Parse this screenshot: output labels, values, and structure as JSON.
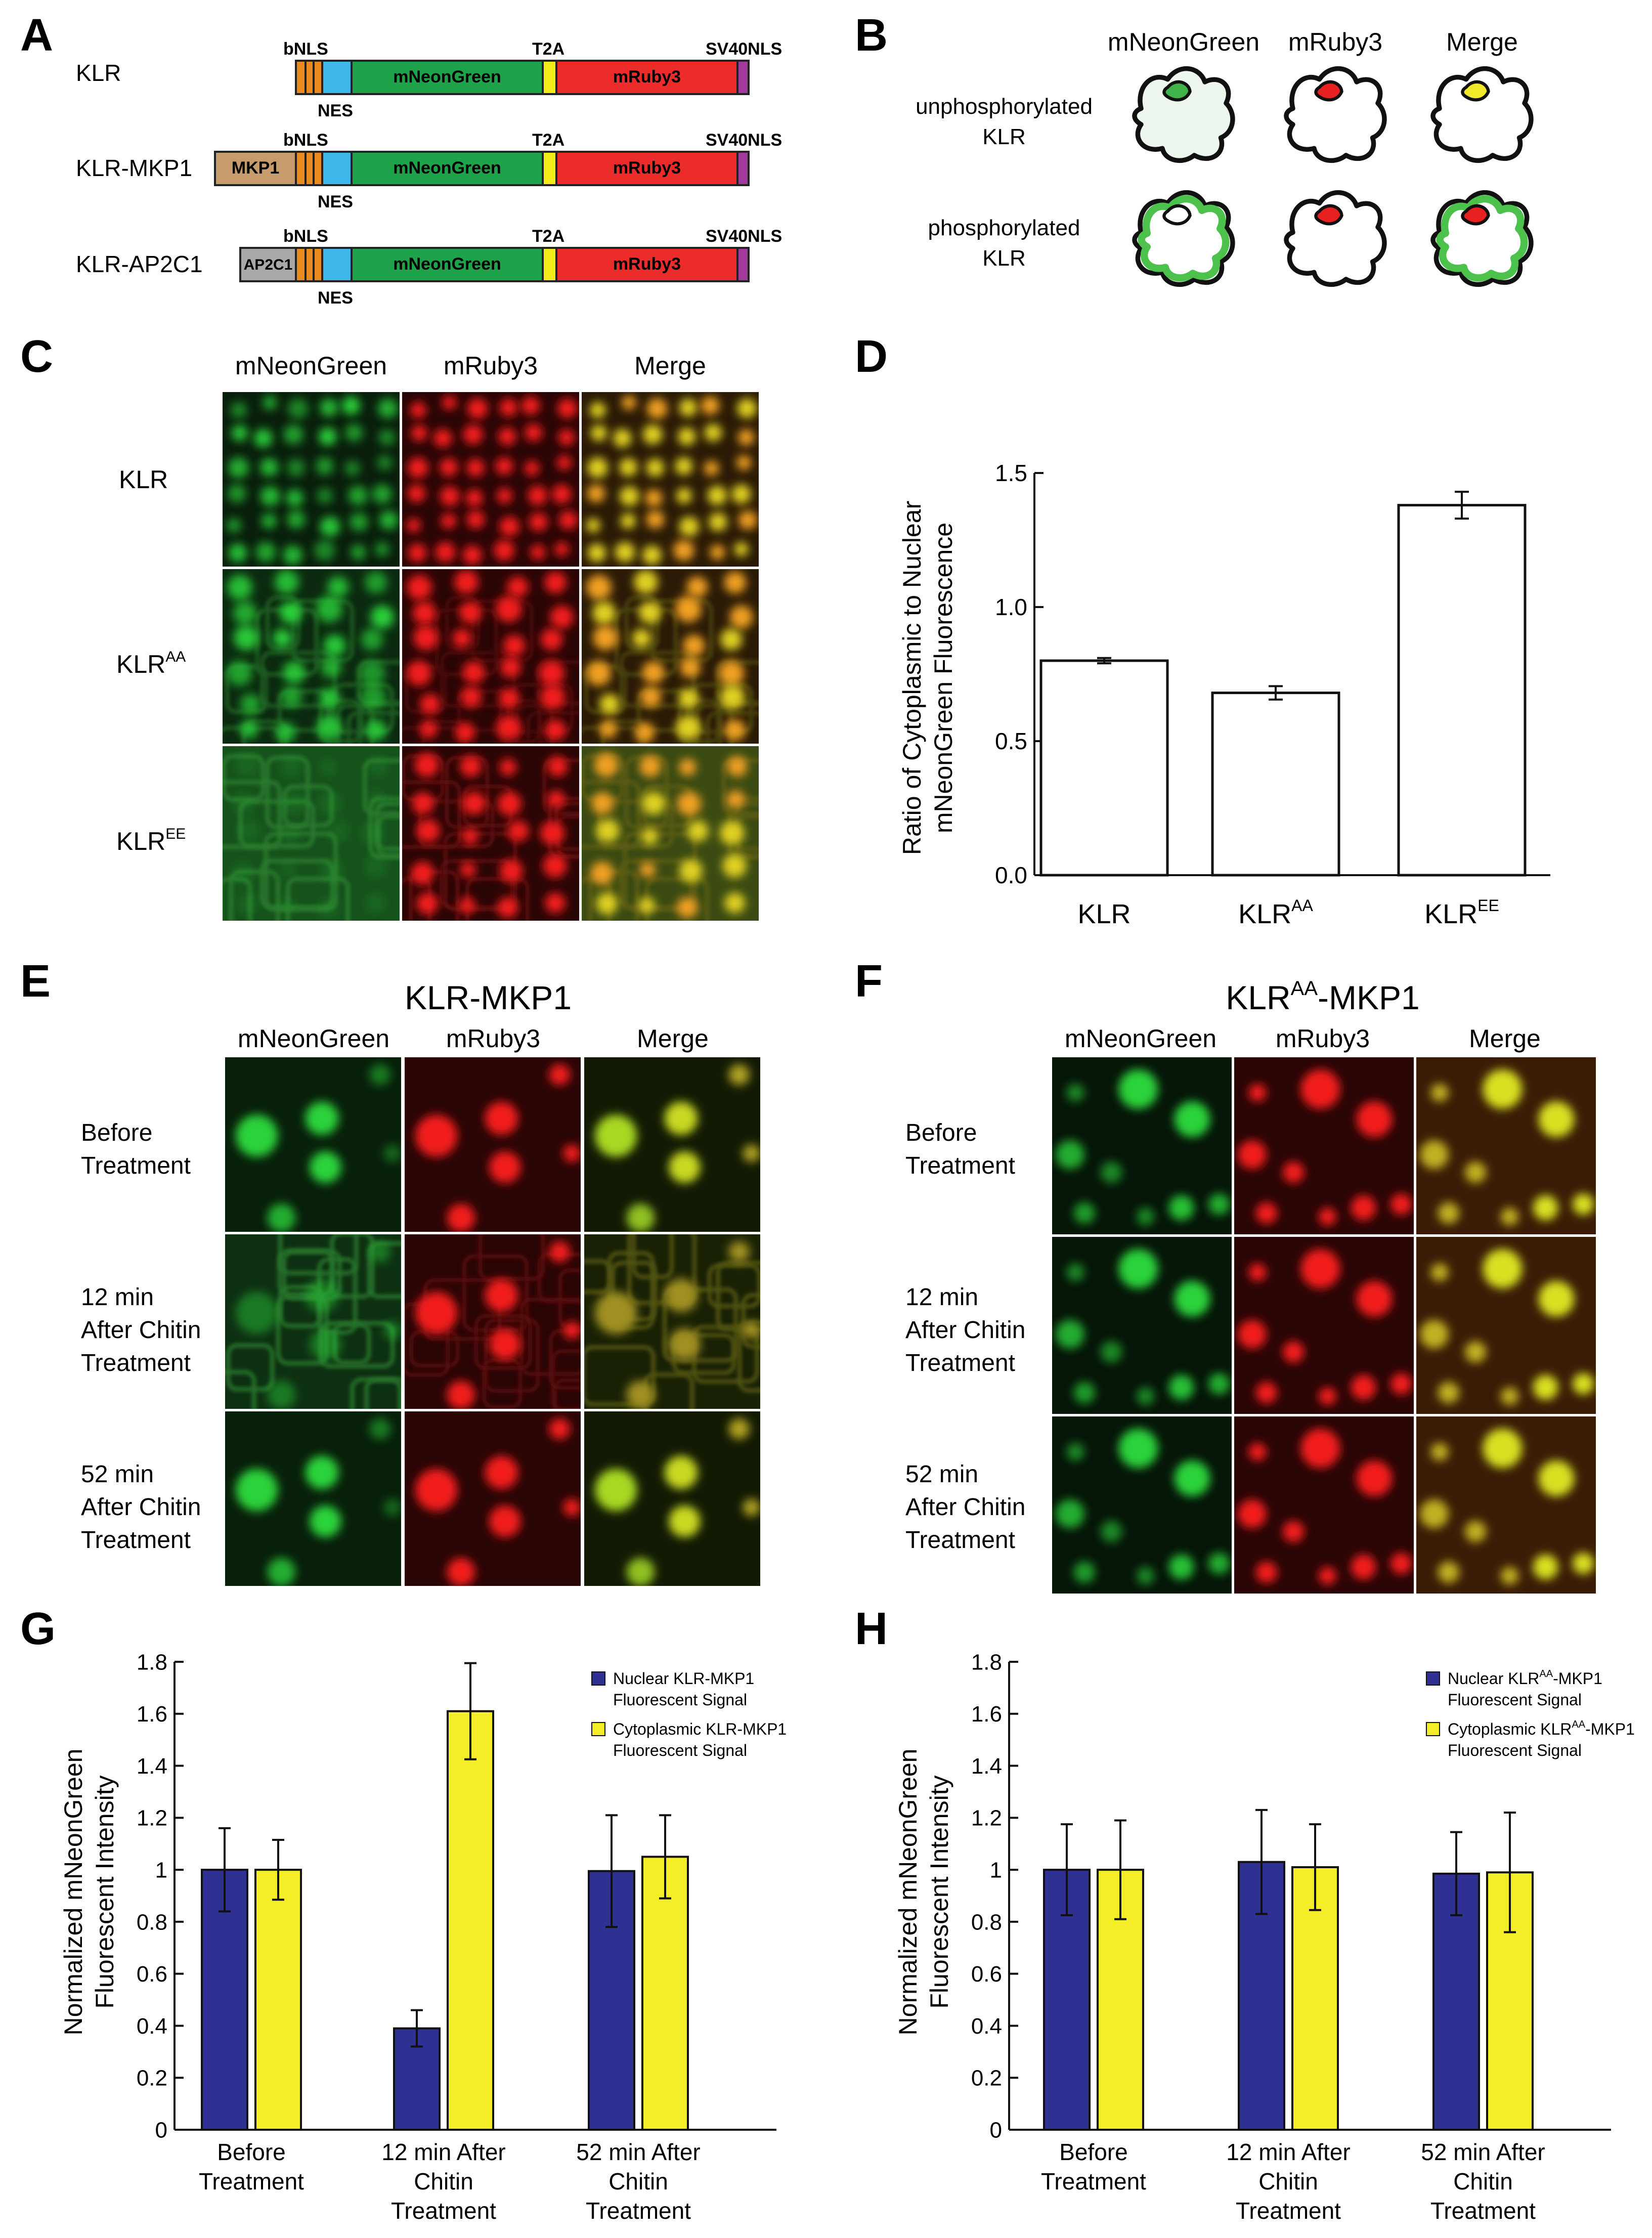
{
  "panels": {
    "A": "A",
    "B": "B",
    "C": "C",
    "D": "D",
    "E": "E",
    "F": "F",
    "G": "G",
    "H": "H"
  },
  "panel_a": {
    "constructs": [
      {
        "name": "KLR",
        "prefix": ""
      },
      {
        "name": "KLR-MKP1",
        "prefix": "MKP1"
      },
      {
        "name": "KLR-AP2C1",
        "prefix": "AP2C1"
      }
    ],
    "bnls": "bNLS",
    "nes": "NES",
    "t2a": "T2A",
    "sv40": "SV40NLS",
    "green_label": "mNeonGreen",
    "red_label": "mRuby3",
    "colors": {
      "mkp1": "#c79b6b",
      "ap2c1": "#a8a8a8",
      "bnls": "#e98a1f",
      "nes": "#3fb7ea",
      "green": "#1fa34a",
      "t2a": "#f3ea1a",
      "red": "#ec2b2b",
      "sv40": "#a23a9b"
    }
  },
  "panel_b": {
    "columns": [
      "mNeonGreen",
      "mRuby3",
      "Merge"
    ],
    "rows": [
      {
        "line1": "unphosphorylated",
        "line2": "KLR"
      },
      {
        "line1": "phosphorylated",
        "line2": "KLR"
      }
    ]
  },
  "panel_c": {
    "columns": [
      "mNeonGreen",
      "mRuby3",
      "Merge"
    ],
    "rows": [
      {
        "base": "KLR",
        "sup": ""
      },
      {
        "base": "KLR",
        "sup": "AA"
      },
      {
        "base": "KLR",
        "sup": "EE"
      }
    ]
  },
  "panel_e": {
    "title": "KLR-MKP1",
    "columns": [
      "mNeonGreen",
      "mRuby3",
      "Merge"
    ],
    "rows": [
      [
        "Before",
        "Treatment"
      ],
      [
        "12 min",
        "After Chitin",
        "Treatment"
      ],
      [
        "52 min",
        "After Chitin",
        "Treatment"
      ]
    ]
  },
  "panel_f": {
    "title_base": "KLR",
    "title_sup": "AA",
    "title_rest": "-MKP1",
    "columns": [
      "mNeonGreen",
      "mRuby3",
      "Merge"
    ],
    "rows": [
      [
        "Before",
        "Treatment"
      ],
      [
        "12 min",
        "After Chitin",
        "Treatment"
      ],
      [
        "52 min",
        "After Chitin",
        "Treatment"
      ]
    ]
  },
  "chart_data": [
    {
      "panel": "D",
      "type": "bar",
      "ylabel": [
        "Ratio of Cytoplasmic to Nuclear",
        "mNeonGreen Fluorescence"
      ],
      "ylim": [
        0,
        1.5
      ],
      "yticks": [
        "0.0",
        "0.5",
        "1.0",
        "1.5"
      ],
      "categories": [
        {
          "base": "KLR",
          "sup": ""
        },
        {
          "base": "KLR",
          "sup": "AA"
        },
        {
          "base": "KLR",
          "sup": "EE"
        }
      ],
      "values": [
        0.8,
        0.68,
        1.38
      ],
      "errors": [
        0.01,
        0.025,
        0.05
      ],
      "bar_color": "#ffffff",
      "grid": false
    },
    {
      "panel": "G",
      "type": "bar",
      "ylabel": [
        "Normalized mNeonGreen",
        "Fluorescent Intensity"
      ],
      "ylim": [
        0,
        1.8
      ],
      "yticks": [
        "0",
        "0.2",
        "0.4",
        "0.6",
        "0.8",
        "1",
        "1.2",
        "1.4",
        "1.6",
        "1.8"
      ],
      "categories": [
        [
          "Before",
          "Treatment"
        ],
        [
          "12 min After",
          "Chitin",
          "Treatment"
        ],
        [
          "52 min After",
          "Chitin",
          "Treatment"
        ]
      ],
      "series": [
        {
          "name_base": "Nuclear KLR-MKP1",
          "name_sup": "",
          "name_rest": "",
          "name_line2": "Fluorescent Signal",
          "values": [
            1.0,
            0.39,
            0.995
          ],
          "errors": [
            0.16,
            0.07,
            0.215
          ],
          "color": "#2e3192"
        },
        {
          "name_base": "Cytoplasmic KLR-MKP1",
          "name_sup": "",
          "name_rest": "",
          "name_line2": "Fluorescent Signal",
          "values": [
            1.0,
            1.61,
            1.05
          ],
          "errors": [
            0.115,
            0.185,
            0.16
          ],
          "color": "#f4ee29"
        }
      ],
      "legend": "top-right",
      "grid": false
    },
    {
      "panel": "H",
      "type": "bar",
      "ylabel": [
        "Normalized mNeonGreen",
        "Fluorescent Intensity"
      ],
      "ylim": [
        0,
        1.8
      ],
      "yticks": [
        "0",
        "0.2",
        "0.4",
        "0.6",
        "0.8",
        "1",
        "1.2",
        "1.4",
        "1.6",
        "1.8"
      ],
      "categories": [
        [
          "Before",
          "Treatment"
        ],
        [
          "12 min After",
          "Chitin",
          "Treatment"
        ],
        [
          "52 min After",
          "Chitin",
          "Treatment"
        ]
      ],
      "series": [
        {
          "name_base": "Nuclear KLR",
          "name_sup": "AA",
          "name_rest": "-MKP1",
          "name_line2": "Fluorescent Signal",
          "values": [
            1.0,
            1.03,
            0.985
          ],
          "errors": [
            0.175,
            0.2,
            0.16
          ],
          "color": "#2e3192"
        },
        {
          "name_base": "Cytoplasmic KLR",
          "name_sup": "AA",
          "name_rest": "-MKP1",
          "name_line2": "Fluorescent Signal",
          "values": [
            1.0,
            1.01,
            0.99
          ],
          "errors": [
            0.19,
            0.165,
            0.23
          ],
          "color": "#f4ee29"
        }
      ],
      "legend": "top-right",
      "grid": false
    }
  ]
}
